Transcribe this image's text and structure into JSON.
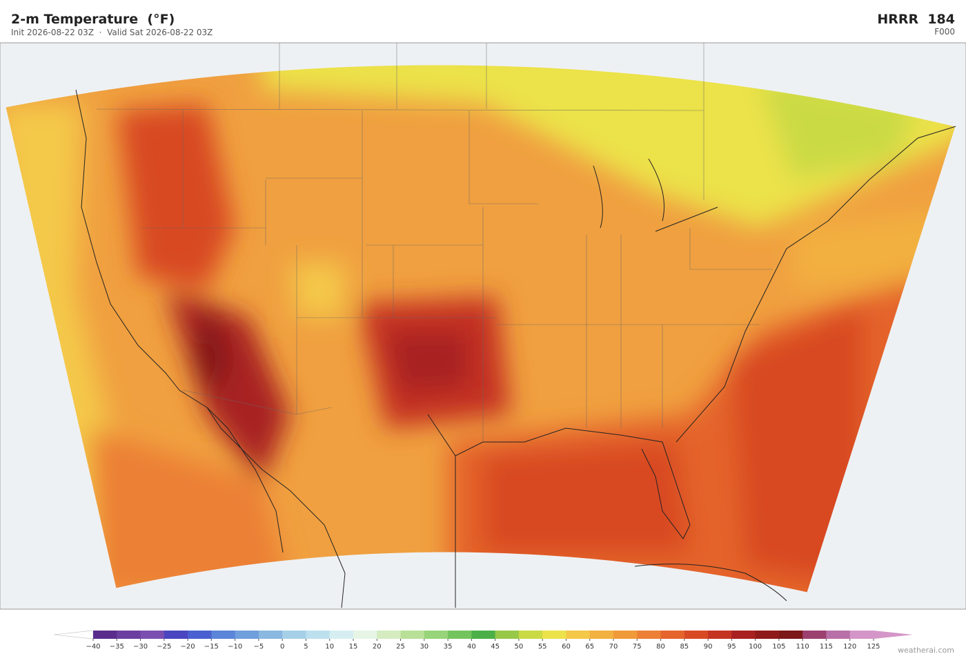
{
  "header": {
    "title": "2-m Temperature  (°F)",
    "subtitle": "Init 2026-08-22 03Z  ·  Valid Sat 2026-08-22 03Z",
    "model": "HRRR  184",
    "forecast_hour": "F000"
  },
  "colorbar": {
    "ticks": [
      {
        "value": -40,
        "label": "−40"
      },
      {
        "value": -35,
        "label": "−35"
      },
      {
        "value": -30,
        "label": "−30"
      },
      {
        "value": -25,
        "label": "−25"
      },
      {
        "value": -20,
        "label": "−20"
      },
      {
        "value": -15,
        "label": "−15"
      },
      {
        "value": -10,
        "label": "−10"
      },
      {
        "value": -5,
        "label": "−5"
      },
      0,
      5,
      10,
      15,
      20,
      25,
      30,
      35,
      40,
      45,
      50,
      55,
      60,
      65,
      70,
      75,
      80,
      85,
      90,
      95,
      100,
      105,
      110,
      115,
      120,
      125
    ],
    "colors": [
      "#5a2d8c",
      "#6b3fa0",
      "#7a4fb0",
      "#4a46c0",
      "#4a5fd0",
      "#5a85d8",
      "#6f9fdc",
      "#8ab8e0",
      "#a6d0e8",
      "#bce0ee",
      "#d6eef2",
      "#e6f5e6",
      "#d4ecc0",
      "#b8e096",
      "#98d47a",
      "#74c45e",
      "#4cb048",
      "#98c848",
      "#cada44",
      "#ece24a",
      "#f4c848",
      "#f2b040",
      "#f09a3a",
      "#ec8034",
      "#e4642c",
      "#d84a24",
      "#c43222",
      "#a82020",
      "#901a1a",
      "#7c1818",
      "#9c4070",
      "#b870a8",
      "#d496c8"
    ],
    "under_color": "#ffffff",
    "over_color": "#d496c8"
  },
  "footer": {
    "credit": "weatherai.com"
  }
}
